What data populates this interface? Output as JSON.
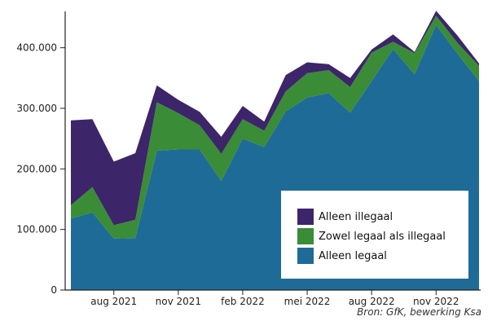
{
  "chart_data": {
    "type": "area",
    "stacked": true,
    "x": [
      "jun 2021",
      "jul 2021",
      "aug 2021",
      "sep 2021",
      "okt 2021",
      "nov 2021",
      "dec 2021",
      "jan 2022",
      "feb 2022",
      "mrt 2022",
      "apr 2022",
      "mei 2022",
      "jun 2022",
      "jul 2022",
      "aug 2022",
      "sep 2022",
      "okt 2022",
      "nov 2022",
      "dec 2022",
      "jan 2023"
    ],
    "x_tick_labels": [
      "aug 2021",
      "nov 2021",
      "feb 2022",
      "mei 2022",
      "aug 2022",
      "nov 2022"
    ],
    "x_tick_categories": [
      "aug 2021",
      "nov 2021",
      "feb 2022",
      "mei 2022",
      "aug 2022",
      "nov 2022"
    ],
    "y_ticks": [
      0,
      100000,
      200000,
      300000,
      400000
    ],
    "y_tick_labels": [
      "0",
      "100.000",
      "200.000",
      "300.000",
      "400.000"
    ],
    "ylim": [
      0,
      460000
    ],
    "series": [
      {
        "name": "Alleen legaal",
        "color": "#1e6b98",
        "values": [
          118000,
          128000,
          85000,
          86000,
          230000,
          232000,
          232000,
          180000,
          250000,
          236000,
          295000,
          318000,
          325000,
          293000,
          345000,
          398000,
          356000,
          438000,
          390000,
          345000
        ]
      },
      {
        "name": "Zowel legaal als illegaal",
        "color": "#3a8c37",
        "values": [
          22000,
          42000,
          22000,
          30000,
          80000,
          60000,
          40000,
          45000,
          32000,
          27000,
          33000,
          40000,
          38000,
          42000,
          47000,
          12000,
          35000,
          15000,
          18000,
          25000
        ]
      },
      {
        "name": "Alleen illegaal",
        "color": "#3d2569",
        "values": [
          140000,
          112000,
          105000,
          110000,
          28000,
          22000,
          22000,
          28000,
          22000,
          15000,
          27000,
          18000,
          10000,
          15000,
          5000,
          12000,
          2000,
          8000,
          12000,
          4000
        ]
      }
    ],
    "legend_order": [
      "Alleen illegaal",
      "Zowel legaal als illegaal",
      "Alleen legaal"
    ],
    "legend_position": "bottom-right",
    "source": "Bron: GfK, bewerking Ksa"
  }
}
